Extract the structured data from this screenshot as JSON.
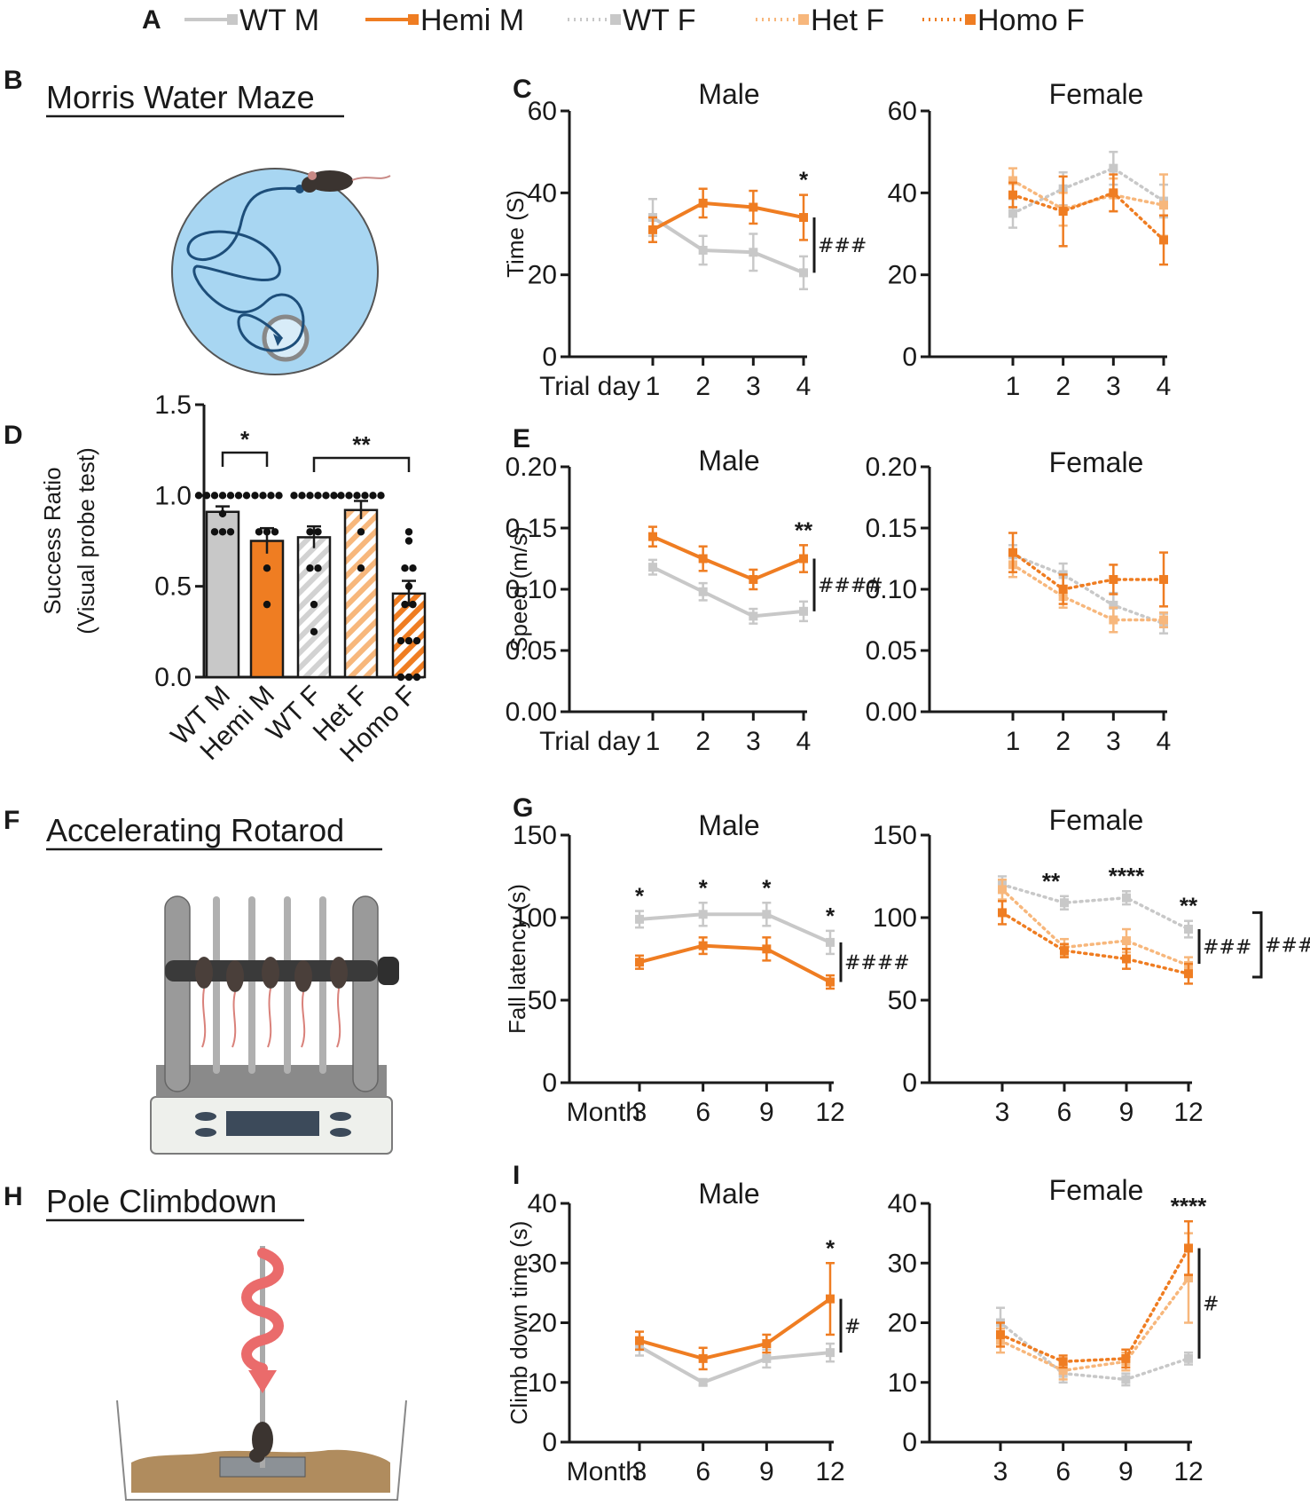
{
  "colors": {
    "wt": "#c8c8c8",
    "mut": "#ef7d22",
    "het": "#f7b77c",
    "text": "#1a1a1a",
    "pool": "#a8d6f2"
  },
  "panel_labels": [
    "A",
    "B",
    "C",
    "D",
    "E",
    "F",
    "G",
    "H",
    "I"
  ],
  "legend": [
    {
      "label": "WT M",
      "style": "solid",
      "color": "#c8c8c8"
    },
    {
      "label": "Hemi M",
      "style": "solid",
      "color": "#ef7d22"
    },
    {
      "label": "WT F",
      "style": "dotted",
      "color": "#c8c8c8"
    },
    {
      "label": "Het F",
      "style": "dotted",
      "color": "#f7b77c"
    },
    {
      "label": "Homo F",
      "style": "dotted",
      "color": "#ef7d22"
    }
  ],
  "illustrations": {
    "b_title": "Morris Water Maze",
    "f_title": "Accelerating Rotarod",
    "h_title": "Pole Climbdown"
  },
  "chart_data": [
    {
      "id": "C",
      "type": "line",
      "title_left": "Male",
      "title_right": "Female",
      "ylabel": "Time (S)",
      "xlabel": "Trial day",
      "x": [
        1,
        2,
        3,
        4
      ],
      "ylim": [
        0,
        60
      ],
      "yticks": [
        0,
        20,
        40,
        60
      ],
      "male_series": [
        {
          "name": "WT M",
          "values": [
            34,
            26,
            25.5,
            20.5
          ],
          "errors": [
            4.5,
            3.5,
            4.5,
            4
          ]
        },
        {
          "name": "Hemi M",
          "values": [
            31,
            37.5,
            36.5,
            34
          ],
          "errors": [
            3,
            3.5,
            4,
            5.5
          ]
        }
      ],
      "female_series": [
        {
          "name": "WT F",
          "values": [
            35,
            41,
            46,
            38
          ],
          "errors": [
            3.5,
            4,
            4,
            4
          ]
        },
        {
          "name": "Het F",
          "values": [
            43,
            36,
            39.5,
            37
          ],
          "errors": [
            3,
            4,
            4,
            7.5
          ]
        },
        {
          "name": "Homo F",
          "values": [
            39.5,
            35.5,
            40,
            28.5
          ],
          "errors": [
            3,
            8.5,
            4.5,
            6
          ]
        }
      ],
      "male_annotations": {
        "stars": [
          {
            "x": 4,
            "text": "*"
          }
        ],
        "hash": "###"
      },
      "female_annotations": {
        "stars": [],
        "hash": ""
      }
    },
    {
      "id": "D",
      "type": "bar",
      "ylabel": "Success Ratio",
      "ylabel2": "(Visual probe test)",
      "categories": [
        "WT M",
        "Hemi M",
        "WT F",
        "Het F",
        "Homo F"
      ],
      "values": [
        0.91,
        0.75,
        0.77,
        0.92,
        0.46
      ],
      "errors": [
        0.03,
        0.07,
        0.06,
        0.05,
        0.07
      ],
      "ylim": [
        0,
        1.5
      ],
      "yticks": [
        0.0,
        0.5,
        1.0,
        1.5
      ],
      "points": [
        [
          1,
          1,
          1,
          1,
          1,
          1,
          1,
          0.9,
          0.8,
          0.8,
          0.8
        ],
        [
          1,
          1,
          1,
          1,
          0.8,
          0.8,
          0.8,
          0.6,
          0.4
        ],
        [
          1,
          1,
          1,
          1,
          1,
          1,
          0.8,
          0.8,
          0.6,
          0.6,
          0.4,
          0.25
        ],
        [
          1,
          1,
          1,
          1,
          1,
          1,
          0.8,
          0.6
        ],
        [
          0.8,
          0.75,
          0.6,
          0.6,
          0.5,
          0.4,
          0.4,
          0.2,
          0.2,
          0.2,
          0.0,
          0.0,
          0.0
        ]
      ],
      "comparisons": [
        {
          "from": "WT M",
          "to": "Hemi M",
          "text": "*"
        },
        {
          "from": "WT F",
          "to": "Homo F",
          "text": "**"
        }
      ]
    },
    {
      "id": "E",
      "type": "line",
      "title_left": "Male",
      "title_right": "Female",
      "ylabel": "Speed (m/s)",
      "xlabel": "Trial day",
      "x": [
        1,
        2,
        3,
        4
      ],
      "ylim": [
        0,
        0.2
      ],
      "yticks": [
        "0.00",
        "0.05",
        "0.10",
        "0.15",
        "0.20"
      ],
      "male_series": [
        {
          "name": "WT M",
          "values": [
            0.118,
            0.098,
            0.078,
            0.082
          ],
          "errors": [
            0.006,
            0.007,
            0.006,
            0.008
          ]
        },
        {
          "name": "Hemi M",
          "values": [
            0.143,
            0.125,
            0.108,
            0.125
          ],
          "errors": [
            0.008,
            0.01,
            0.008,
            0.011
          ]
        }
      ],
      "female_series": [
        {
          "name": "WT F",
          "values": [
            0.128,
            0.112,
            0.087,
            0.072
          ],
          "errors": [
            0.008,
            0.009,
            0.01,
            0.008
          ]
        },
        {
          "name": "Het F",
          "values": [
            0.12,
            0.094,
            0.075,
            0.075
          ],
          "errors": [
            0.01,
            0.009,
            0.01,
            0.006
          ]
        },
        {
          "name": "Homo F",
          "values": [
            0.13,
            0.1,
            0.108,
            0.108
          ],
          "errors": [
            0.016,
            0.012,
            0.012,
            0.022
          ]
        }
      ],
      "male_annotations": {
        "stars": [
          {
            "x": 4,
            "text": "**"
          }
        ],
        "hash": "####"
      },
      "female_annotations": {
        "stars": [],
        "hash": ""
      }
    },
    {
      "id": "G",
      "type": "line",
      "title_left": "Male",
      "title_right": "Female",
      "ylabel": "Fall latency (s)",
      "xlabel": "Month",
      "x": [
        3,
        6,
        9,
        12
      ],
      "ylim": [
        0,
        150
      ],
      "yticks": [
        0,
        50,
        100,
        150
      ],
      "male_series": [
        {
          "name": "WT M",
          "values": [
            99,
            102,
            102,
            85
          ],
          "errors": [
            5,
            7,
            7,
            7
          ]
        },
        {
          "name": "Hemi M",
          "values": [
            73,
            83,
            81,
            61
          ],
          "errors": [
            4,
            5,
            7,
            4
          ]
        }
      ],
      "female_series": [
        {
          "name": "WT F",
          "values": [
            120,
            109,
            112,
            93
          ],
          "errors": [
            5,
            4,
            4,
            5
          ]
        },
        {
          "name": "Het F",
          "values": [
            117,
            82,
            86,
            71
          ],
          "errors": [
            6,
            5,
            7,
            5
          ]
        },
        {
          "name": "Homo F",
          "values": [
            103,
            80,
            75,
            66
          ],
          "errors": [
            7,
            4,
            6,
            6
          ]
        }
      ],
      "male_annotations": {
        "stars": [
          {
            "x": 3,
            "text": "*"
          },
          {
            "x": 6,
            "text": "*"
          },
          {
            "x": 9,
            "text": "*"
          },
          {
            "x": 12,
            "text": "*"
          }
        ],
        "hash": "####"
      },
      "female_annotations": {
        "stars": [
          {
            "x": 4.5,
            "text": "**"
          },
          {
            "x": 9,
            "text": "****"
          },
          {
            "x": 12,
            "text": "**"
          }
        ],
        "hash": "###",
        "hash2": "####"
      }
    },
    {
      "id": "I",
      "type": "line",
      "title_left": "Male",
      "title_right": "Female",
      "ylabel": "Climb down time (s)",
      "xlabel": "Month",
      "x": [
        3,
        6,
        9,
        12
      ],
      "ylim": [
        0,
        40
      ],
      "yticks": [
        0,
        10,
        20,
        30,
        40
      ],
      "male_series": [
        {
          "name": "WT M",
          "values": [
            16,
            10,
            14,
            15
          ],
          "errors": [
            1.5,
            0.5,
            1.5,
            1.5
          ]
        },
        {
          "name": "Hemi M",
          "values": [
            17,
            14,
            16.5,
            24
          ],
          "errors": [
            1.5,
            1.8,
            1.5,
            6
          ]
        }
      ],
      "female_series": [
        {
          "name": "WT F",
          "values": [
            20,
            11.5,
            10.5,
            14
          ],
          "errors": [
            2.5,
            1.5,
            1,
            1
          ]
        },
        {
          "name": "Het F",
          "values": [
            17,
            12,
            13.5,
            27.5
          ],
          "errors": [
            2,
            1.5,
            1.5,
            7.5
          ]
        },
        {
          "name": "Homo F",
          "values": [
            18,
            13.5,
            14,
            32.5
          ],
          "errors": [
            2,
            1,
            1.5,
            4.5
          ]
        }
      ],
      "male_annotations": {
        "stars": [
          {
            "x": 12,
            "text": "*"
          }
        ],
        "hash": "#"
      },
      "female_annotations": {
        "stars": [
          {
            "x": 12,
            "text": "****"
          }
        ],
        "hash": "#"
      }
    }
  ]
}
